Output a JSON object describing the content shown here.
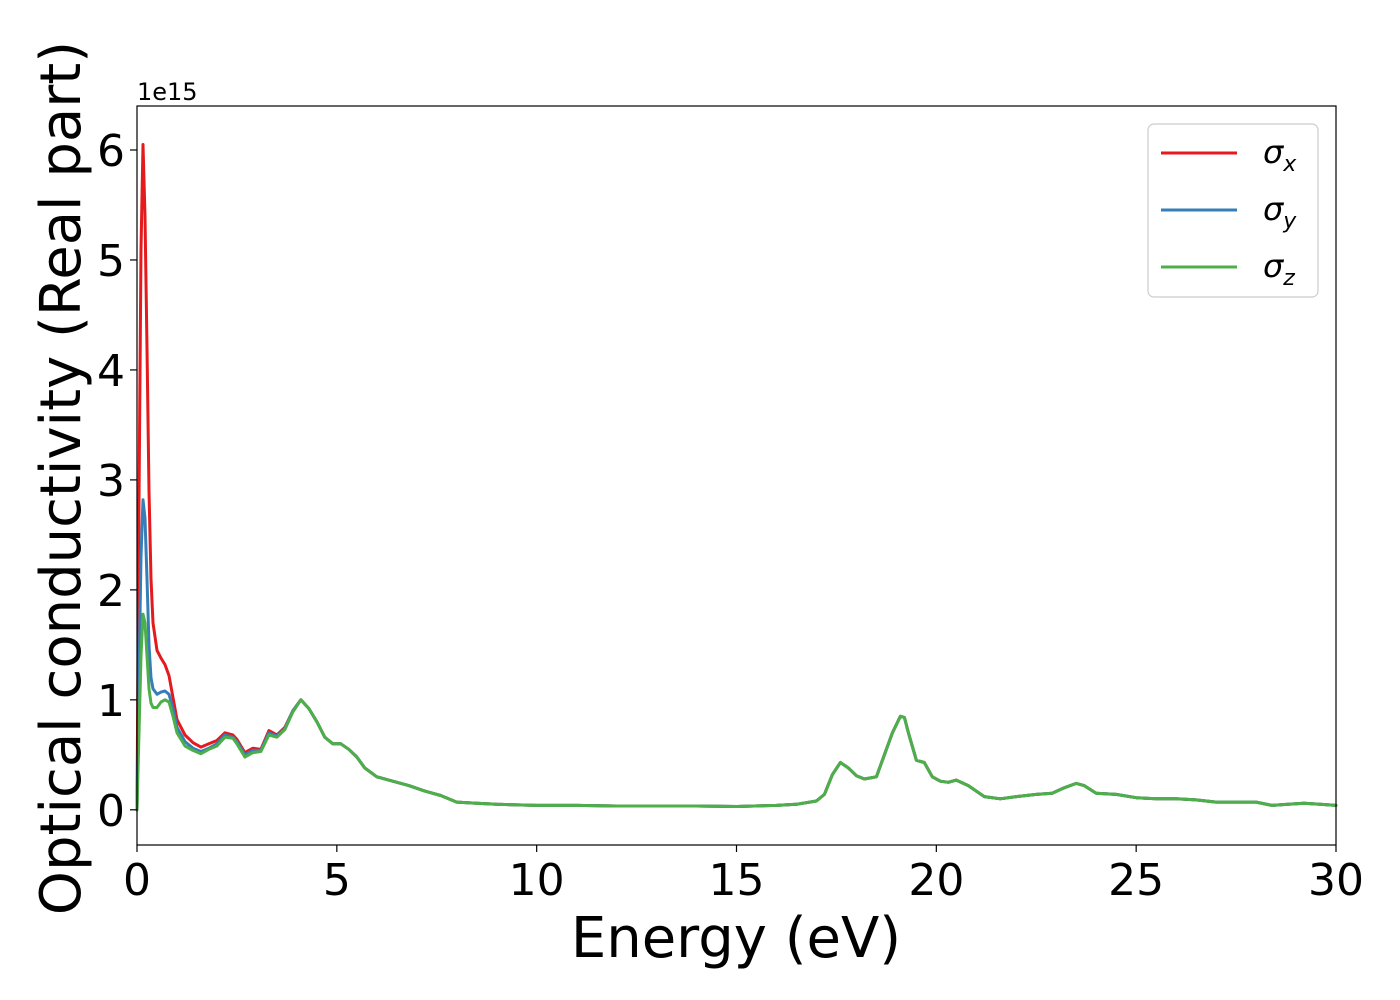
{
  "chart_data": {
    "type": "line",
    "xlabel": "Energy (eV)",
    "ylabel": "Optical conductivity (Real part)",
    "y_offset_label": "1e15",
    "xlim": [
      0,
      30
    ],
    "ylim": [
      -0.32,
      6.4
    ],
    "x_ticks": [
      0,
      5,
      10,
      15,
      20,
      25,
      30
    ],
    "x_tick_labels": [
      "0",
      "5",
      "10",
      "15",
      "20",
      "25",
      "30"
    ],
    "y_ticks": [
      0,
      1,
      2,
      3,
      4,
      5,
      6
    ],
    "y_tick_labels": [
      "0",
      "1",
      "2",
      "3",
      "4",
      "5",
      "6"
    ],
    "y_scale_note": "values in units of 1e15",
    "grid": false,
    "legend_position": "top-right",
    "series": [
      {
        "name": "σx",
        "legend": {
          "base": "σ",
          "sub": "x"
        },
        "color": "#e41a1c",
        "x": [
          0,
          0.05,
          0.1,
          0.15,
          0.2,
          0.25,
          0.3,
          0.35,
          0.4,
          0.5,
          0.6,
          0.7,
          0.8,
          0.9,
          1.0,
          1.2,
          1.4,
          1.6,
          1.8,
          2.0,
          2.2,
          2.4,
          2.5,
          2.7,
          2.9,
          3.1,
          3.3,
          3.5,
          3.7,
          3.9,
          4.1,
          4.3,
          4.5,
          4.7,
          4.9,
          5.1,
          5.3,
          5.5,
          5.7,
          6.0,
          6.4,
          6.8,
          7.2,
          7.6,
          8.0,
          8.5,
          9.0,
          10.0,
          11.0,
          12.0,
          13.0,
          14.0,
          15.0,
          16.0,
          16.5,
          17.0,
          17.2,
          17.4,
          17.6,
          17.8,
          18.0,
          18.2,
          18.5,
          18.7,
          18.9,
          19.1,
          19.2,
          19.3,
          19.5,
          19.7,
          19.9,
          20.1,
          20.3,
          20.5,
          20.8,
          21.2,
          21.6,
          22.0,
          22.5,
          22.9,
          23.2,
          23.5,
          23.7,
          24.0,
          24.5,
          25.0,
          25.5,
          26.0,
          26.5,
          27.0,
          27.5,
          28.0,
          28.4,
          28.8,
          29.2,
          29.6,
          30.0
        ],
        "y": [
          0,
          2.8,
          5.1,
          6.05,
          5.4,
          4.2,
          2.9,
          2.1,
          1.7,
          1.45,
          1.38,
          1.32,
          1.22,
          1.02,
          0.82,
          0.68,
          0.61,
          0.57,
          0.6,
          0.63,
          0.7,
          0.68,
          0.64,
          0.52,
          0.56,
          0.55,
          0.72,
          0.68,
          0.75,
          0.9,
          1.0,
          0.92,
          0.8,
          0.66,
          0.6,
          0.6,
          0.55,
          0.48,
          0.38,
          0.3,
          0.26,
          0.22,
          0.17,
          0.13,
          0.07,
          0.06,
          0.05,
          0.04,
          0.04,
          0.035,
          0.035,
          0.035,
          0.03,
          0.04,
          0.05,
          0.08,
          0.14,
          0.32,
          0.43,
          0.38,
          0.31,
          0.28,
          0.3,
          0.5,
          0.7,
          0.85,
          0.84,
          0.7,
          0.45,
          0.43,
          0.3,
          0.26,
          0.25,
          0.27,
          0.22,
          0.12,
          0.1,
          0.12,
          0.14,
          0.15,
          0.2,
          0.24,
          0.22,
          0.15,
          0.14,
          0.11,
          0.1,
          0.1,
          0.09,
          0.07,
          0.07,
          0.07,
          0.04,
          0.05,
          0.06,
          0.05,
          0.04
        ]
      },
      {
        "name": "σy",
        "legend": {
          "base": "σ",
          "sub": "y"
        },
        "color": "#377eb8",
        "x": [
          0,
          0.05,
          0.1,
          0.15,
          0.2,
          0.25,
          0.3,
          0.35,
          0.4,
          0.5,
          0.6,
          0.7,
          0.8,
          0.9,
          1.0,
          1.2,
          1.4,
          1.6,
          1.8,
          2.0,
          2.2,
          2.4,
          2.5,
          2.7,
          2.9,
          3.1,
          3.3,
          3.5,
          3.7,
          3.9,
          4.1,
          4.3,
          4.5,
          4.7,
          4.9,
          5.1,
          5.3,
          5.5,
          5.7,
          6.0,
          6.4,
          6.8,
          7.2,
          7.6,
          8.0,
          8.5,
          9.0,
          10.0,
          11.0,
          12.0,
          13.0,
          14.0,
          15.0,
          16.0,
          16.5,
          17.0,
          17.2,
          17.4,
          17.6,
          17.8,
          18.0,
          18.2,
          18.5,
          18.7,
          18.9,
          19.1,
          19.2,
          19.3,
          19.5,
          19.7,
          19.9,
          20.1,
          20.3,
          20.5,
          20.8,
          21.2,
          21.6,
          22.0,
          22.5,
          22.9,
          23.2,
          23.5,
          23.7,
          24.0,
          24.5,
          25.0,
          25.5,
          26.0,
          26.5,
          27.0,
          27.5,
          28.0,
          28.4,
          28.8,
          29.2,
          29.6,
          30.0
        ],
        "y": [
          0,
          1.2,
          2.3,
          2.82,
          2.65,
          2.1,
          1.5,
          1.2,
          1.1,
          1.05,
          1.07,
          1.08,
          1.05,
          0.92,
          0.75,
          0.62,
          0.56,
          0.53,
          0.56,
          0.6,
          0.68,
          0.66,
          0.62,
          0.5,
          0.54,
          0.54,
          0.7,
          0.67,
          0.74,
          0.9,
          1.0,
          0.92,
          0.8,
          0.66,
          0.6,
          0.6,
          0.55,
          0.48,
          0.38,
          0.3,
          0.26,
          0.22,
          0.17,
          0.13,
          0.07,
          0.06,
          0.05,
          0.04,
          0.04,
          0.035,
          0.035,
          0.035,
          0.03,
          0.04,
          0.05,
          0.08,
          0.14,
          0.32,
          0.43,
          0.38,
          0.31,
          0.28,
          0.3,
          0.5,
          0.7,
          0.85,
          0.84,
          0.7,
          0.45,
          0.43,
          0.3,
          0.26,
          0.25,
          0.27,
          0.22,
          0.12,
          0.1,
          0.12,
          0.14,
          0.15,
          0.2,
          0.24,
          0.22,
          0.15,
          0.14,
          0.11,
          0.1,
          0.1,
          0.09,
          0.07,
          0.07,
          0.07,
          0.04,
          0.05,
          0.06,
          0.05,
          0.04
        ]
      },
      {
        "name": "σz",
        "legend": {
          "base": "σ",
          "sub": "z"
        },
        "color": "#4daf4a",
        "x": [
          0,
          0.05,
          0.1,
          0.15,
          0.2,
          0.25,
          0.3,
          0.35,
          0.4,
          0.5,
          0.6,
          0.7,
          0.8,
          0.9,
          1.0,
          1.2,
          1.4,
          1.6,
          1.8,
          2.0,
          2.2,
          2.4,
          2.5,
          2.7,
          2.9,
          3.1,
          3.3,
          3.5,
          3.7,
          3.9,
          4.1,
          4.3,
          4.5,
          4.7,
          4.9,
          5.1,
          5.3,
          5.5,
          5.7,
          6.0,
          6.4,
          6.8,
          7.2,
          7.6,
          8.0,
          8.5,
          9.0,
          10.0,
          11.0,
          12.0,
          13.0,
          14.0,
          15.0,
          16.0,
          16.5,
          17.0,
          17.2,
          17.4,
          17.6,
          17.8,
          18.0,
          18.2,
          18.5,
          18.7,
          18.9,
          19.1,
          19.2,
          19.3,
          19.5,
          19.7,
          19.9,
          20.1,
          20.3,
          20.5,
          20.8,
          21.2,
          21.6,
          22.0,
          22.5,
          22.9,
          23.2,
          23.5,
          23.7,
          24.0,
          24.5,
          25.0,
          25.5,
          26.0,
          26.5,
          27.0,
          27.5,
          28.0,
          28.4,
          28.8,
          29.2,
          29.6,
          30.0
        ],
        "y": [
          0,
          0.7,
          1.4,
          1.78,
          1.7,
          1.4,
          1.1,
          0.97,
          0.93,
          0.93,
          0.98,
          1.0,
          0.98,
          0.85,
          0.7,
          0.58,
          0.54,
          0.51,
          0.55,
          0.58,
          0.66,
          0.65,
          0.6,
          0.48,
          0.52,
          0.53,
          0.68,
          0.66,
          0.73,
          0.89,
          1.0,
          0.92,
          0.8,
          0.66,
          0.6,
          0.6,
          0.55,
          0.48,
          0.38,
          0.3,
          0.26,
          0.22,
          0.17,
          0.13,
          0.07,
          0.06,
          0.05,
          0.04,
          0.04,
          0.035,
          0.035,
          0.035,
          0.03,
          0.04,
          0.05,
          0.08,
          0.14,
          0.32,
          0.43,
          0.38,
          0.31,
          0.28,
          0.3,
          0.5,
          0.7,
          0.85,
          0.84,
          0.7,
          0.45,
          0.43,
          0.3,
          0.26,
          0.25,
          0.27,
          0.22,
          0.12,
          0.1,
          0.12,
          0.14,
          0.15,
          0.2,
          0.24,
          0.22,
          0.15,
          0.14,
          0.11,
          0.1,
          0.1,
          0.09,
          0.07,
          0.07,
          0.07,
          0.04,
          0.05,
          0.06,
          0.05,
          0.04
        ]
      }
    ]
  }
}
